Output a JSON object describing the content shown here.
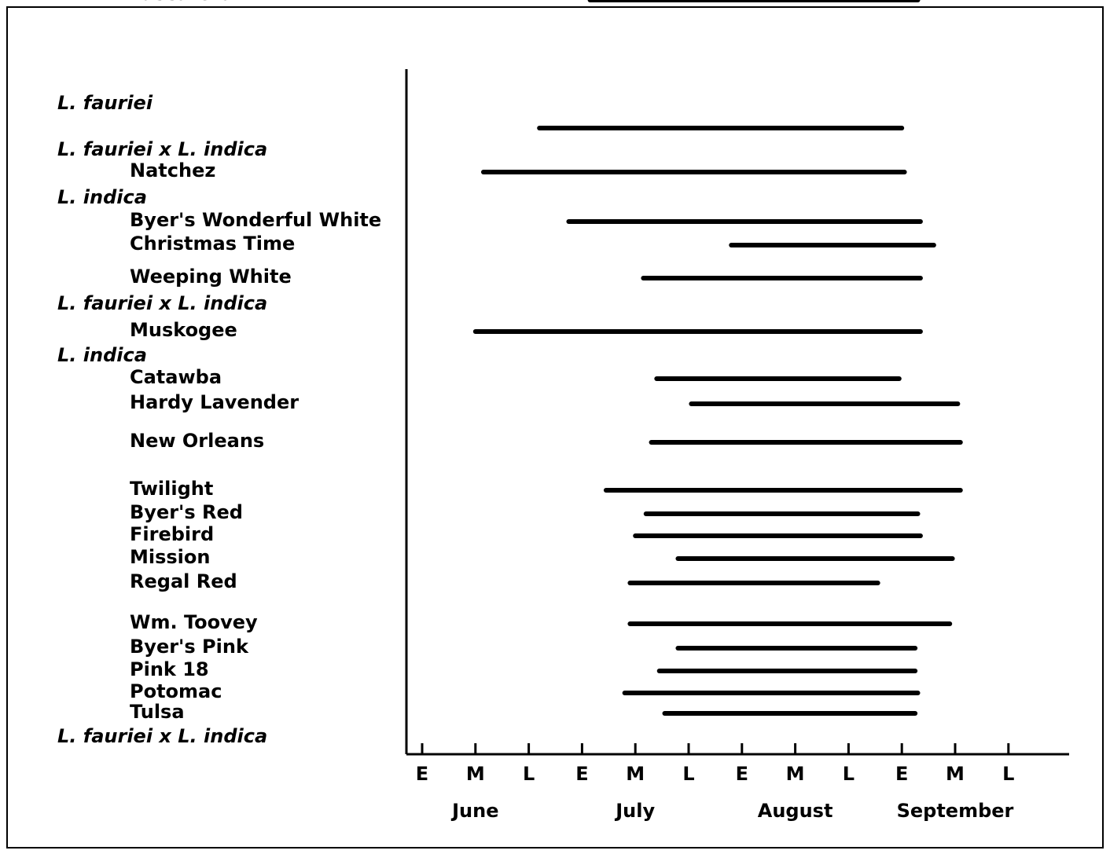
{
  "chart_data": {
    "type": "gantt",
    "title": "",
    "xlabel": "",
    "ylabel": "",
    "x_ticks": [
      {
        "label": "E",
        "pos": 0
      },
      {
        "label": "M",
        "pos": 1
      },
      {
        "label": "L",
        "pos": 2
      },
      {
        "label": "E",
        "pos": 3
      },
      {
        "label": "M",
        "pos": 4
      },
      {
        "label": "L",
        "pos": 5
      },
      {
        "label": "E",
        "pos": 6
      },
      {
        "label": "M",
        "pos": 7
      },
      {
        "label": "L",
        "pos": 8
      },
      {
        "label": "E",
        "pos": 9
      },
      {
        "label": "M",
        "pos": 10
      },
      {
        "label": "L",
        "pos": 11
      }
    ],
    "months": [
      {
        "name": "June",
        "center": 1
      },
      {
        "name": "July",
        "center": 4
      },
      {
        "name": "August",
        "center": 7
      },
      {
        "name": "September",
        "center": 10
      }
    ],
    "xlim": [
      0,
      11.9
    ],
    "rows": [
      {
        "kind": "header",
        "label": "L. fauriei"
      },
      {
        "kind": "series",
        "label": "",
        "start": 2.2,
        "end": 9.0
      },
      {
        "kind": "header",
        "label": "L. fauriei x L. indica"
      },
      {
        "kind": "series",
        "label": "Natchez",
        "start": 1.15,
        "end": 9.05
      },
      {
        "kind": "header",
        "label": "L. indica"
      },
      {
        "kind": "series",
        "label": "Byer's Wonderful White",
        "start": 2.75,
        "end": 9.35
      },
      {
        "kind": "series",
        "label": "Christmas Time",
        "start": 5.8,
        "end": 9.6
      },
      {
        "kind": "series",
        "label": "Weeping White",
        "start": 4.15,
        "end": 9.35
      },
      {
        "kind": "header",
        "label": "L. fauriei x L. indica"
      },
      {
        "kind": "series",
        "label": "Muskogee",
        "start": 1.0,
        "end": 9.35
      },
      {
        "kind": "header",
        "label": "L. indica"
      },
      {
        "kind": "series",
        "label": "Catawba",
        "start": 4.4,
        "end": 8.95
      },
      {
        "kind": "series",
        "label": "Hardy Lavender",
        "start": 5.05,
        "end": 10.05
      },
      {
        "kind": "series",
        "label": "New Orleans",
        "start": 4.3,
        "end": 10.1
      },
      {
        "kind": "series",
        "label": "Twilight",
        "start": 3.45,
        "end": 10.1
      },
      {
        "kind": "series",
        "label": "Byer's Red",
        "start": 4.2,
        "end": 9.3
      },
      {
        "kind": "series",
        "label": "Firebird",
        "start": 4.0,
        "end": 9.35
      },
      {
        "kind": "series",
        "label": "Mission",
        "start": 4.8,
        "end": 9.95
      },
      {
        "kind": "series",
        "label": "Regal Red",
        "start": 3.9,
        "end": 8.55
      },
      {
        "kind": "series",
        "label": "Wm. Toovey",
        "start": 3.9,
        "end": 9.9
      },
      {
        "kind": "series",
        "label": "Byer's Pink",
        "start": 4.8,
        "end": 9.25
      },
      {
        "kind": "series",
        "label": "Pink 18",
        "start": 4.45,
        "end": 9.25
      },
      {
        "kind": "series",
        "label": "Potomac",
        "start": 3.8,
        "end": 9.3
      },
      {
        "kind": "series",
        "label": "Tulsa",
        "start": 4.55,
        "end": 9.25
      },
      {
        "kind": "header",
        "label": "L. fauriei x L. indica"
      },
      {
        "kind": "series",
        "label": "Tuscarora",
        "start": 3.15,
        "end": 9.3
      }
    ]
  }
}
